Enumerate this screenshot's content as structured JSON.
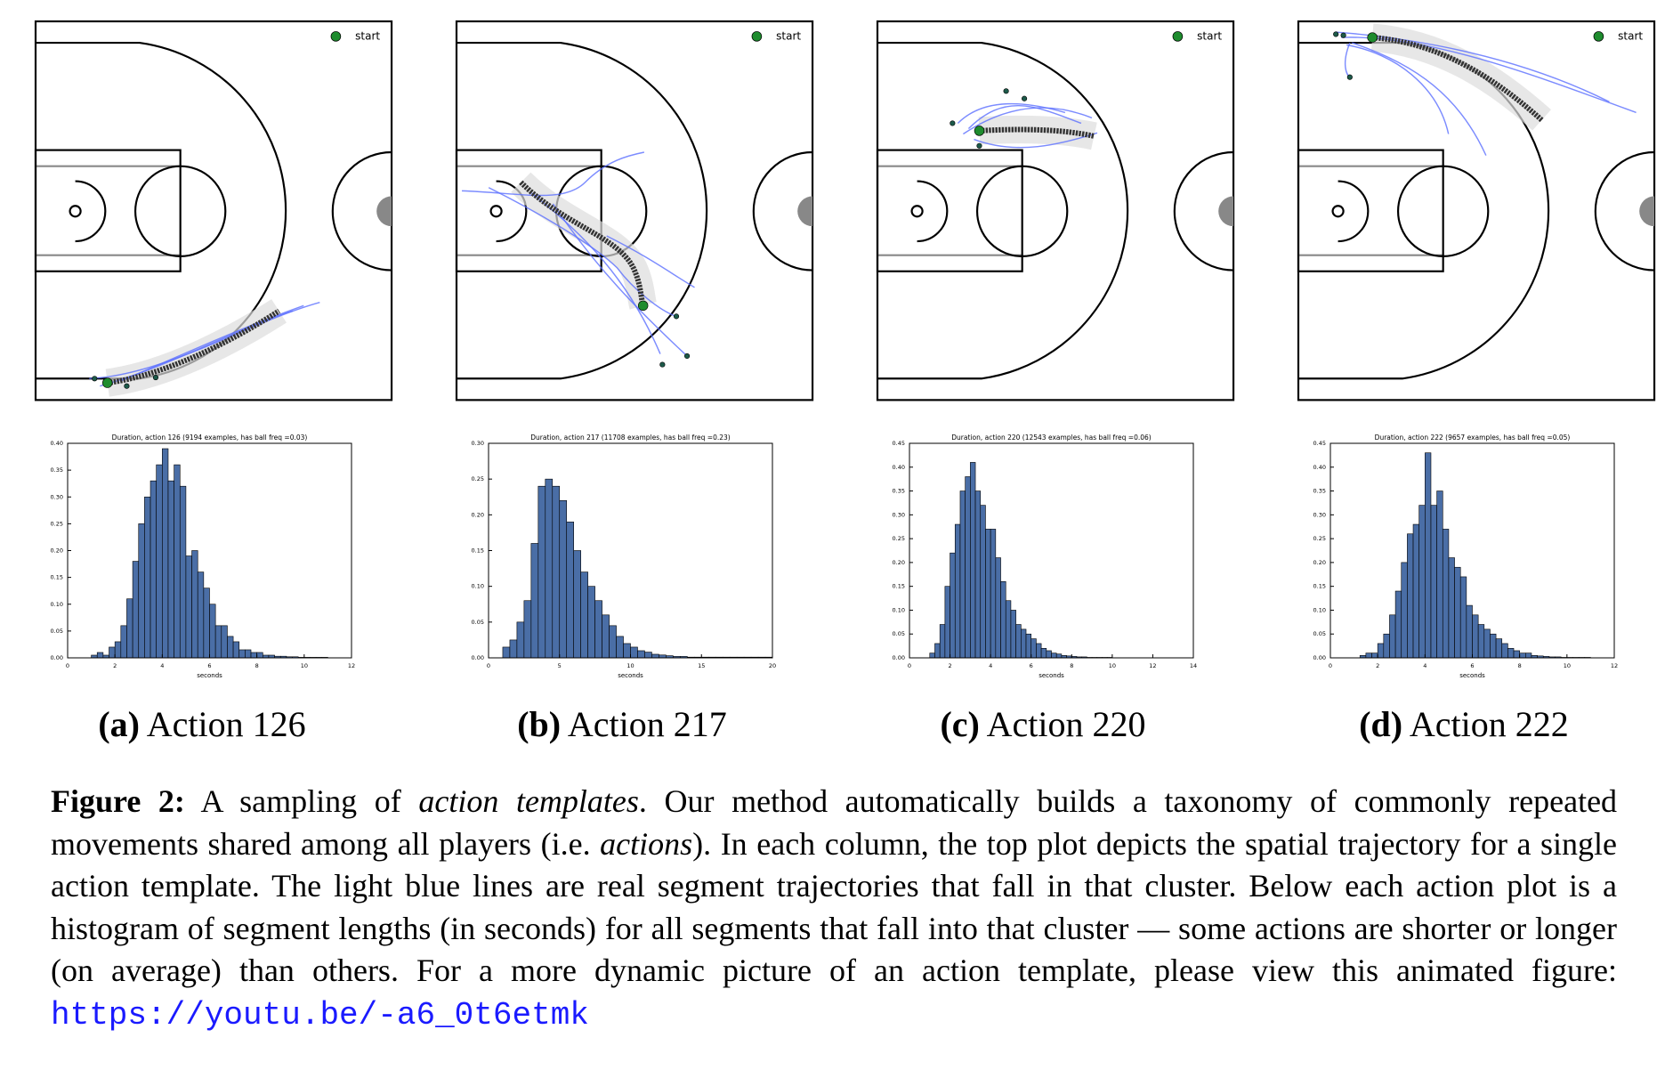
{
  "courts": [
    {
      "legend": "start"
    },
    {
      "legend": "start"
    },
    {
      "legend": "start"
    },
    {
      "legend": "start"
    }
  ],
  "chart_data": [
    {
      "type": "histogram",
      "title": "Duration, action 126 (9194 examples, has ball freq =0.03)",
      "xlabel": "seconds",
      "color": "#4a6ea6",
      "bins": [
        1,
        1.25,
        1.5,
        1.75,
        2,
        2.25,
        2.5,
        2.75,
        3,
        3.25,
        3.5,
        3.75,
        4,
        4.25,
        4.5,
        4.75,
        5,
        5.25,
        5.5,
        5.75,
        6,
        6.25,
        6.5,
        6.75,
        7,
        7.25,
        7.5,
        7.75,
        8,
        8.25,
        8.5,
        8.75,
        9,
        9.25,
        9.5,
        9.75,
        10,
        10.25,
        10.5,
        10.75,
        11
      ],
      "values": [
        0.005,
        0.01,
        0.005,
        0.02,
        0.03,
        0.06,
        0.11,
        0.18,
        0.25,
        0.3,
        0.33,
        0.36,
        0.39,
        0.33,
        0.36,
        0.32,
        0.19,
        0.2,
        0.16,
        0.13,
        0.1,
        0.06,
        0.06,
        0.04,
        0.03,
        0.015,
        0.015,
        0.01,
        0.01,
        0.005,
        0.005,
        0.003,
        0.003,
        0.002,
        0.002,
        0.001,
        0.001,
        0.001,
        0.001,
        0.001
      ],
      "xlim": [
        0,
        12
      ],
      "xticks": [
        0,
        2,
        4,
        6,
        8,
        10,
        12
      ],
      "ylim": [
        0,
        0.4
      ],
      "yticks": [
        {
          "value": 0,
          "label": "0.00"
        },
        {
          "value": 0.05,
          "label": "0.05"
        },
        {
          "value": 0.1,
          "label": "0.10"
        },
        {
          "value": 0.15,
          "label": "0.15"
        },
        {
          "value": 0.2,
          "label": "0.20"
        },
        {
          "value": 0.25,
          "label": "0.25"
        },
        {
          "value": 0.3,
          "label": "0.30"
        },
        {
          "value": 0.35,
          "label": "0.35"
        },
        {
          "value": 0.4,
          "label": "0.40"
        }
      ]
    },
    {
      "type": "histogram",
      "title": "Duration, action 217 (11708 examples, has ball freq =0.23)",
      "xlabel": "seconds",
      "color": "#4a6ea6",
      "bins": [
        1,
        1.5,
        2,
        2.5,
        3,
        3.5,
        4,
        4.5,
        5,
        5.5,
        6,
        6.5,
        7,
        7.5,
        8,
        8.5,
        9,
        9.5,
        10,
        10.5,
        11,
        11.5,
        12,
        12.5,
        13,
        13.5,
        14,
        14.5,
        15,
        15.5,
        16,
        16.5,
        17,
        17.5,
        18,
        18.5,
        19,
        19.5,
        20
      ],
      "values": [
        0.015,
        0.025,
        0.05,
        0.08,
        0.16,
        0.24,
        0.25,
        0.24,
        0.22,
        0.19,
        0.15,
        0.12,
        0.1,
        0.08,
        0.06,
        0.045,
        0.03,
        0.02,
        0.015,
        0.01,
        0.008,
        0.005,
        0.004,
        0.003,
        0.002,
        0.002,
        0.001,
        0.001,
        0.001,
        0.001,
        0.001,
        0.001,
        0.001,
        0.001,
        0.001,
        0.001,
        0.001,
        0.001
      ],
      "xlim": [
        0,
        20
      ],
      "xticks": [
        0,
        5,
        10,
        15,
        20
      ],
      "ylim": [
        0,
        0.3
      ],
      "yticks": [
        {
          "value": 0,
          "label": "0.00"
        },
        {
          "value": 0.05,
          "label": "0.05"
        },
        {
          "value": 0.1,
          "label": "0.10"
        },
        {
          "value": 0.15,
          "label": "0.15"
        },
        {
          "value": 0.2,
          "label": "0.20"
        },
        {
          "value": 0.25,
          "label": "0.25"
        },
        {
          "value": 0.3,
          "label": "0.30"
        }
      ]
    },
    {
      "type": "histogram",
      "title": "Duration, action 220 (12543 examples, has ball freq =0.06)",
      "xlabel": "seconds",
      "color": "#4a6ea6",
      "bins": [
        1,
        1.25,
        1.5,
        1.75,
        2,
        2.25,
        2.5,
        2.75,
        3,
        3.25,
        3.5,
        3.75,
        4,
        4.25,
        4.5,
        4.75,
        5,
        5.25,
        5.5,
        5.75,
        6,
        6.25,
        6.5,
        6.75,
        7,
        7.25,
        7.5,
        7.75,
        8,
        8.25,
        8.5,
        8.75,
        9,
        9.25,
        9.5,
        9.75,
        10
      ],
      "values": [
        0.01,
        0.03,
        0.07,
        0.15,
        0.22,
        0.28,
        0.35,
        0.38,
        0.41,
        0.35,
        0.32,
        0.27,
        0.27,
        0.21,
        0.16,
        0.12,
        0.1,
        0.07,
        0.06,
        0.05,
        0.04,
        0.03,
        0.02,
        0.015,
        0.01,
        0.008,
        0.005,
        0.004,
        0.003,
        0.002,
        0.002,
        0.001,
        0.001,
        0.001,
        0.001,
        0.001
      ],
      "xlim": [
        0,
        14
      ],
      "xticks": [
        0,
        2,
        4,
        6,
        8,
        10,
        12,
        14
      ],
      "ylim": [
        0,
        0.45
      ],
      "yticks": [
        {
          "value": 0,
          "label": "0.00"
        },
        {
          "value": 0.05,
          "label": "0.05"
        },
        {
          "value": 0.1,
          "label": "0.10"
        },
        {
          "value": 0.15,
          "label": "0.15"
        },
        {
          "value": 0.2,
          "label": "0.20"
        },
        {
          "value": 0.25,
          "label": "0.25"
        },
        {
          "value": 0.3,
          "label": "0.30"
        },
        {
          "value": 0.35,
          "label": "0.35"
        },
        {
          "value": 0.4,
          "label": "0.40"
        },
        {
          "value": 0.45,
          "label": "0.45"
        }
      ]
    },
    {
      "type": "histogram",
      "title": "Duration, action 222 (9657 examples, has ball freq =0.05)",
      "xlabel": "seconds",
      "color": "#4a6ea6",
      "bins": [
        1.25,
        1.5,
        1.75,
        2,
        2.25,
        2.5,
        2.75,
        3,
        3.25,
        3.5,
        3.75,
        4,
        4.25,
        4.5,
        4.75,
        5,
        5.25,
        5.5,
        5.75,
        6,
        6.25,
        6.5,
        6.75,
        7,
        7.25,
        7.5,
        7.75,
        8,
        8.25,
        8.5,
        8.75,
        9,
        9.25,
        9.5,
        9.75,
        10,
        10.25,
        10.5,
        10.75,
        11
      ],
      "values": [
        0.005,
        0.01,
        0.01,
        0.03,
        0.05,
        0.09,
        0.14,
        0.2,
        0.26,
        0.28,
        0.32,
        0.43,
        0.32,
        0.35,
        0.27,
        0.21,
        0.19,
        0.17,
        0.11,
        0.09,
        0.07,
        0.06,
        0.05,
        0.04,
        0.03,
        0.02,
        0.015,
        0.01,
        0.01,
        0.005,
        0.004,
        0.003,
        0.002,
        0.002,
        0.001,
        0.001,
        0.001,
        0.001,
        0.001
      ],
      "xlim": [
        0,
        12
      ],
      "xticks": [
        0,
        2,
        4,
        6,
        8,
        10,
        12
      ],
      "ylim": [
        0,
        0.45
      ],
      "yticks": [
        {
          "value": 0,
          "label": "0.00"
        },
        {
          "value": 0.05,
          "label": "0.05"
        },
        {
          "value": 0.1,
          "label": "0.10"
        },
        {
          "value": 0.15,
          "label": "0.15"
        },
        {
          "value": 0.2,
          "label": "0.20"
        },
        {
          "value": 0.25,
          "label": "0.25"
        },
        {
          "value": 0.3,
          "label": "0.30"
        },
        {
          "value": 0.35,
          "label": "0.35"
        },
        {
          "value": 0.4,
          "label": "0.40"
        },
        {
          "value": 0.45,
          "label": "0.45"
        }
      ]
    }
  ],
  "subcaptions": [
    {
      "label": "(a)",
      "text": "Action 126"
    },
    {
      "label": "(b)",
      "text": "Action 217"
    },
    {
      "label": "(c)",
      "text": "Action 220"
    },
    {
      "label": "(d)",
      "text": "Action 222"
    }
  ],
  "caption": {
    "label": "Figure 2:",
    "text1": "A sampling of",
    "em1": "action templates",
    "text2": ". Our method automatically builds a taxonomy of commonly repeated movements shared among all players (i.e.",
    "em2": "actions",
    "text3": "). In each column, the top plot depicts the spatial trajectory for a single action template. The light blue lines are real segment trajectories that fall in that cluster. Below each action plot is a histogram of segment lengths (in seconds) for all segments that fall into that cluster — some actions are shorter or longer (on average) than others. For a more dynamic picture of an action template, please view this animated figure:",
    "link": "https://youtu.be/-a6_0t6etmk"
  }
}
